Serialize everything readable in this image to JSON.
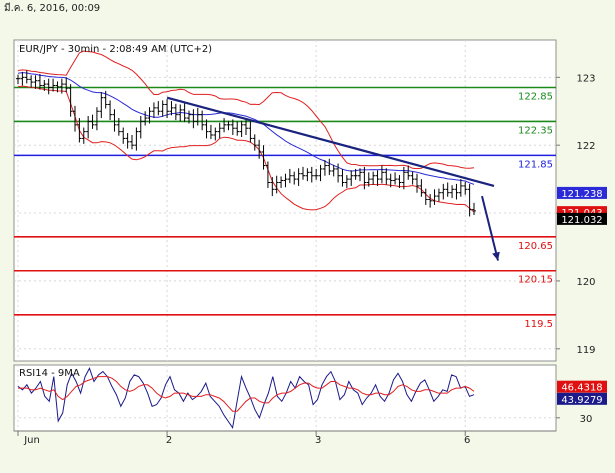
{
  "header": {
    "date_stamp": "มี.ค. 6, 2016, 00:09"
  },
  "chart_data": [
    {
      "type": "line",
      "title": "EUR/JPY - 30min - 2:08:49 AM (UTC+2)",
      "x_tick_labels": [
        "Jun",
        "2",
        "3",
        "6"
      ],
      "y_tick_labels": [
        "123",
        "122",
        "121",
        "120",
        "119"
      ],
      "ylim": [
        118.82,
        123.55
      ],
      "grid": true,
      "series": [
        {
          "kind": "price-bars",
          "color": "#000000",
          "values": [
            122.98,
            123.0,
            122.97,
            122.93,
            122.95,
            122.88,
            122.9,
            122.85,
            122.88,
            122.86,
            122.9,
            122.84,
            122.5,
            122.3,
            122.1,
            122.2,
            122.35,
            122.3,
            122.5,
            122.7,
            122.6,
            122.45,
            122.3,
            122.2,
            122.1,
            122.05,
            122.0,
            122.2,
            122.35,
            122.4,
            122.5,
            122.55,
            122.5,
            122.6,
            122.5,
            122.55,
            122.45,
            122.52,
            122.4,
            122.45,
            122.35,
            122.45,
            122.3,
            122.2,
            122.15,
            122.2,
            122.25,
            122.3,
            122.3,
            122.25,
            122.2,
            122.3,
            122.25,
            122.1,
            122.0,
            121.9,
            121.7,
            121.45,
            121.35,
            121.45,
            121.48,
            121.5,
            121.55,
            121.5,
            121.58,
            121.55,
            121.6,
            121.55,
            121.55,
            121.65,
            121.7,
            121.62,
            121.65,
            121.55,
            121.45,
            121.5,
            121.55,
            121.55,
            121.6,
            121.45,
            121.5,
            121.55,
            121.5,
            121.6,
            121.5,
            121.48,
            121.5,
            121.45,
            121.6,
            121.55,
            121.5,
            121.4,
            121.3,
            121.2,
            121.18,
            121.25,
            121.3,
            121.35,
            121.3,
            121.35,
            121.3,
            121.4,
            121.35,
            121.05,
            121.032
          ]
        },
        {
          "kind": "moving-average",
          "color": "#2a2ad8"
        },
        {
          "kind": "bollinger-upper",
          "color": "#e02020"
        },
        {
          "kind": "bollinger-lower",
          "color": "#e02020"
        }
      ],
      "price_labels": [
        {
          "text": "121.238",
          "value": 121.238,
          "color": "#2a2ad8"
        },
        {
          "text": "121.043",
          "value": 121.043,
          "color": "#e01010"
        },
        {
          "text": "121.032",
          "value": 121.032,
          "color": "#000000"
        }
      ],
      "levels": [
        {
          "value": 122.85,
          "label": "122.85",
          "color": "#1b8a1b"
        },
        {
          "value": 122.35,
          "label": "122.35",
          "color": "#1b8a1b"
        },
        {
          "value": 121.85,
          "label": "121.85",
          "color": "#1e1ee0"
        },
        {
          "value": 120.65,
          "label": "120.65",
          "color": "#e01010"
        },
        {
          "value": 120.15,
          "label": "120.15",
          "color": "#e01010"
        },
        {
          "value": 119.5,
          "label": "119.5",
          "color": "#e01010"
        }
      ],
      "trendline": {
        "from": 122.7,
        "to": 121.4,
        "color": "#1a237e"
      },
      "arrow": {
        "to": 120.3,
        "color": "#1a237e"
      }
    },
    {
      "type": "line",
      "title": "RSI14 - 9MA",
      "ylim": [
        22,
        62
      ],
      "y_tick_labels": [
        "30"
      ],
      "series": [
        {
          "name": "RSI14",
          "color": "#1a1a8a",
          "values": [
            49,
            47,
            50,
            45,
            48,
            52,
            43,
            40,
            55,
            28,
            33,
            50,
            57,
            52,
            45,
            55,
            60,
            52,
            56,
            58,
            55,
            49,
            44,
            37,
            42,
            52,
            56,
            55,
            51,
            45,
            37,
            38,
            42,
            50,
            55,
            47,
            45,
            40,
            45,
            41,
            43,
            46,
            51,
            43,
            40,
            37,
            32,
            28,
            24,
            40,
            55,
            48,
            42,
            35,
            30,
            38,
            45,
            55,
            43,
            40,
            45,
            52,
            48,
            55,
            52,
            50,
            38,
            41,
            50,
            55,
            58,
            52,
            41,
            44,
            52,
            47,
            45,
            38,
            42,
            45,
            50,
            43,
            40,
            45,
            53,
            57,
            52,
            44,
            40,
            46,
            51,
            53,
            47,
            40,
            43,
            47,
            46,
            56,
            55,
            48,
            49,
            43,
            44
          ]
        },
        {
          "name": "9MA",
          "color": "#e02020",
          "values": [
            48,
            48,
            48,
            47,
            47,
            48,
            47,
            46,
            47,
            43,
            41,
            43,
            46,
            49,
            50,
            52,
            53,
            54,
            55,
            55,
            55,
            54,
            52,
            49,
            47,
            46,
            47,
            49,
            50,
            50,
            48,
            45,
            43,
            42,
            43,
            45,
            45,
            45,
            44,
            43,
            43,
            43,
            44,
            44,
            43,
            42,
            40,
            37,
            34,
            34,
            37,
            40,
            42,
            42,
            40,
            39,
            39,
            42,
            44,
            45,
            45,
            46,
            48,
            50,
            51,
            51,
            49,
            48,
            48,
            50,
            52,
            52,
            50,
            49,
            48,
            48,
            47,
            45,
            44,
            44,
            45,
            45,
            44,
            44,
            46,
            49,
            50,
            49,
            47,
            46,
            46,
            47,
            47,
            46,
            45,
            45,
            45,
            47,
            48,
            48,
            49,
            48,
            46
          ]
        }
      ],
      "value_labels": [
        {
          "text": "46.4318",
          "value": 46.4318,
          "color": "#e01010"
        },
        {
          "text": "43.9279",
          "value": 43.9279,
          "color": "#1a1a8a"
        }
      ]
    }
  ]
}
